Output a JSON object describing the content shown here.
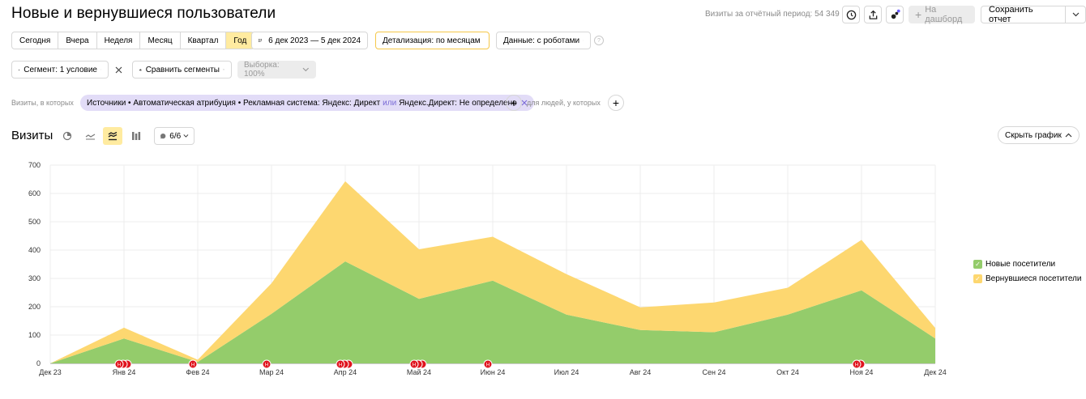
{
  "header": {
    "title": "Новые и вернувшиеся пользователи",
    "period_visits": "Визиты за отчётный период: 54 349",
    "dashboard_label": "На дашборд",
    "save_report_label": "Сохранить отчет"
  },
  "toolbar": {
    "periods": [
      "Сегодня",
      "Вчера",
      "Неделя",
      "Месяц",
      "Квартал",
      "Год"
    ],
    "active_period": "Год",
    "date_range": "6 дек 2023 — 5 дек 2024",
    "detail": "Детализация: по месяцам",
    "data": "Данные: с роботами"
  },
  "segment": {
    "segment_label": "Сегмент: 1 условие",
    "compare_label": "Сравнить сегменты",
    "sample_label": "Выборка: 100%"
  },
  "filter": {
    "prefix": "Визиты, в которых",
    "chip_main": "Источники • Автоматическая атрибуция • Рекламная система: Яндекс: Директ",
    "chip_or": "или",
    "chip_tail": "Яндекс.Директ: Не определено",
    "people_label": "для людей, у которых"
  },
  "chart_header": {
    "title": "Визиты",
    "series_count": "6/6",
    "hide_chart": "Скрыть график"
  },
  "chart_data": {
    "type": "area",
    "stacked": true,
    "categories": [
      "Дек 23",
      "Янв 24",
      "Фев 24",
      "Мар 24",
      "Апр 24",
      "Май 24",
      "Июн 24",
      "Июл 24",
      "Авг 24",
      "Сен 24",
      "Окт 24",
      "Ноя 24",
      "Дек 24"
    ],
    "series": [
      {
        "name": "Новые посетители",
        "color": "#94cc6b",
        "values": [
          0,
          88,
          5,
          175,
          360,
          228,
          292,
          172,
          118,
          110,
          172,
          258,
          88
        ]
      },
      {
        "name": "Вернувшиеся посетители",
        "color": "#fdd770",
        "values": [
          0,
          38,
          8,
          108,
          283,
          175,
          155,
          143,
          80,
          105,
          95,
          178,
          37
        ]
      }
    ],
    "ylim": [
      0,
      700
    ],
    "yticks": [
      0,
      100,
      200,
      300,
      400,
      500,
      600,
      700
    ],
    "legend_position": "right",
    "annotations": [
      {
        "category": "Янв 24",
        "count": 3
      },
      {
        "category": "Фев 24",
        "count": 1
      },
      {
        "category": "Мар 24",
        "count": 1
      },
      {
        "category": "Апр 24",
        "count": 3
      },
      {
        "category": "Май 24",
        "count": 3
      },
      {
        "category": "Июн 24",
        "count": 1
      },
      {
        "category": "Ноя 24",
        "count": 2
      }
    ],
    "annotation_letter": "Н"
  }
}
